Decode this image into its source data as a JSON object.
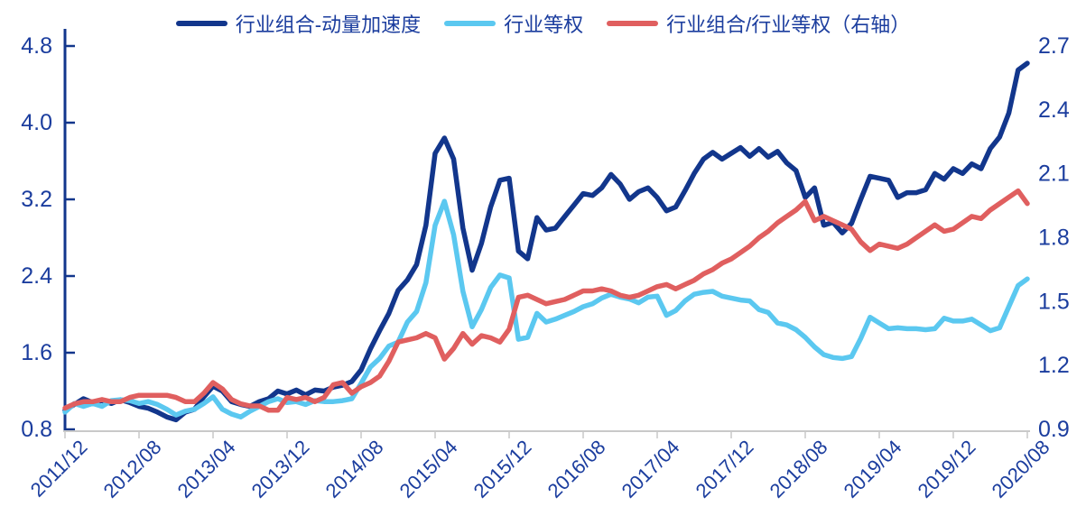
{
  "chart_data": {
    "type": "line",
    "title": "",
    "legend_position": "top",
    "grid": false,
    "x_points": 105,
    "x_ticks_every": 8,
    "x_tick_labels": [
      "2011/12",
      "2012/08",
      "2013/04",
      "2013/12",
      "2014/08",
      "2015/04",
      "2015/12",
      "2016/08",
      "2017/04",
      "2017/12",
      "2018/08",
      "2019/04",
      "2019/12",
      "2020/08"
    ],
    "left_axis": {
      "min": 0.8,
      "max": 4.8,
      "tick_labels": [
        "4.8",
        "4.0",
        "3.2",
        "2.4",
        "1.6",
        "0.8"
      ]
    },
    "right_axis": {
      "min": 0.9,
      "max": 2.7,
      "tick_labels": [
        "2.7",
        "2.4",
        "2.1",
        "1.8",
        "1.5",
        "1.2",
        "0.9"
      ]
    },
    "colors": {
      "axis_navy": "#12368c",
      "label_text": "#1b3d9e",
      "baseline_gray": "#c9c9c9"
    },
    "series": [
      {
        "name": "行业组合-动量加速度",
        "axis": "left",
        "color": "#12368c",
        "values": [
          1.0,
          1.06,
          1.12,
          1.08,
          1.1,
          1.07,
          1.11,
          1.08,
          1.04,
          1.02,
          0.98,
          0.93,
          0.9,
          0.98,
          1.01,
          1.14,
          1.25,
          1.2,
          1.09,
          1.06,
          1.04,
          1.09,
          1.12,
          1.2,
          1.17,
          1.21,
          1.16,
          1.21,
          1.2,
          1.24,
          1.26,
          1.3,
          1.42,
          1.64,
          1.83,
          2.01,
          2.25,
          2.36,
          2.52,
          2.93,
          3.68,
          3.84,
          3.62,
          2.9,
          2.46,
          2.74,
          3.12,
          3.4,
          3.42,
          2.66,
          2.58,
          3.01,
          2.88,
          2.9,
          3.02,
          3.14,
          3.26,
          3.24,
          3.32,
          3.46,
          3.36,
          3.2,
          3.28,
          3.32,
          3.22,
          3.08,
          3.12,
          3.29,
          3.47,
          3.62,
          3.69,
          3.62,
          3.68,
          3.74,
          3.65,
          3.73,
          3.64,
          3.7,
          3.58,
          3.5,
          3.22,
          3.32,
          2.93,
          2.96,
          2.85,
          2.95,
          3.2,
          3.44,
          3.42,
          3.4,
          3.22,
          3.27,
          3.27,
          3.3,
          3.47,
          3.41,
          3.52,
          3.47,
          3.57,
          3.52,
          3.73,
          3.85,
          4.1,
          4.55,
          4.62
        ]
      },
      {
        "name": "行业等权",
        "axis": "left",
        "color": "#5bc8f0",
        "values": [
          0.98,
          1.07,
          1.04,
          1.07,
          1.04,
          1.1,
          1.11,
          1.1,
          1.07,
          1.09,
          1.06,
          1.01,
          0.95,
          0.99,
          1.01,
          1.07,
          1.14,
          1.01,
          0.96,
          0.93,
          0.99,
          1.04,
          1.09,
          1.12,
          1.08,
          1.09,
          1.06,
          1.1,
          1.09,
          1.09,
          1.1,
          1.12,
          1.28,
          1.45,
          1.54,
          1.67,
          1.71,
          1.92,
          2.03,
          2.33,
          2.93,
          3.18,
          2.83,
          2.24,
          1.87,
          2.05,
          2.28,
          2.41,
          2.38,
          1.74,
          1.76,
          2.01,
          1.92,
          1.95,
          1.99,
          2.03,
          2.08,
          2.11,
          2.17,
          2.21,
          2.18,
          2.16,
          2.12,
          2.18,
          2.19,
          1.99,
          2.04,
          2.14,
          2.21,
          2.23,
          2.24,
          2.19,
          2.17,
          2.15,
          2.14,
          2.05,
          2.02,
          1.91,
          1.89,
          1.84,
          1.76,
          1.66,
          1.58,
          1.55,
          1.54,
          1.56,
          1.75,
          1.97,
          1.91,
          1.85,
          1.86,
          1.85,
          1.85,
          1.84,
          1.85,
          1.96,
          1.93,
          1.93,
          1.95,
          1.89,
          1.83,
          1.86,
          2.08,
          2.3,
          2.37
        ]
      },
      {
        "name": "行业组合/行业等权（右轴）",
        "axis": "right",
        "color": "#e05f5f",
        "values": [
          1.0,
          1.02,
          1.03,
          1.03,
          1.04,
          1.03,
          1.03,
          1.05,
          1.06,
          1.06,
          1.06,
          1.06,
          1.05,
          1.03,
          1.03,
          1.07,
          1.12,
          1.09,
          1.04,
          1.02,
          1.01,
          1.01,
          0.99,
          0.99,
          1.05,
          1.04,
          1.05,
          1.03,
          1.05,
          1.11,
          1.12,
          1.07,
          1.1,
          1.12,
          1.15,
          1.22,
          1.31,
          1.32,
          1.33,
          1.35,
          1.33,
          1.23,
          1.28,
          1.35,
          1.3,
          1.34,
          1.33,
          1.31,
          1.37,
          1.52,
          1.53,
          1.51,
          1.49,
          1.5,
          1.51,
          1.53,
          1.55,
          1.55,
          1.56,
          1.55,
          1.53,
          1.52,
          1.53,
          1.55,
          1.57,
          1.58,
          1.56,
          1.58,
          1.6,
          1.63,
          1.65,
          1.68,
          1.7,
          1.73,
          1.76,
          1.8,
          1.83,
          1.87,
          1.9,
          1.93,
          1.97,
          1.88,
          1.9,
          1.88,
          1.86,
          1.84,
          1.78,
          1.74,
          1.77,
          1.76,
          1.75,
          1.77,
          1.8,
          1.83,
          1.86,
          1.83,
          1.84,
          1.87,
          1.9,
          1.89,
          1.93,
          1.96,
          1.99,
          2.02,
          1.96
        ]
      }
    ]
  }
}
